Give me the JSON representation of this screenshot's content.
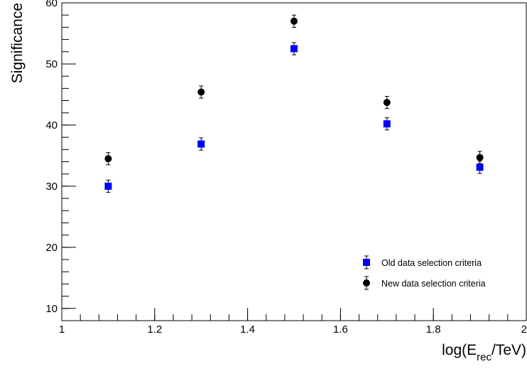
{
  "chart_data": {
    "type": "scatter",
    "ylabel": "Significance",
    "xlabel_parts": {
      "prefix": "log(E",
      "subscript": "rec",
      "suffix": "/TeV)"
    },
    "xlim": [
      1,
      2
    ],
    "ylim": [
      8,
      60
    ],
    "x_ticks": [
      {
        "value": 1,
        "label": "1"
      },
      {
        "value": 1.2,
        "label": "1.2"
      },
      {
        "value": 1.4,
        "label": "1.4"
      },
      {
        "value": 1.6,
        "label": "1.6"
      },
      {
        "value": 1.8,
        "label": "1.8"
      },
      {
        "value": 2,
        "label": "2"
      }
    ],
    "y_ticks": [
      {
        "value": 10,
        "label": "10"
      },
      {
        "value": 20,
        "label": "20"
      },
      {
        "value": 30,
        "label": "30"
      },
      {
        "value": 40,
        "label": "40"
      },
      {
        "value": 50,
        "label": "50"
      },
      {
        "value": 60,
        "label": "60"
      }
    ],
    "x_minor_step": 0.04,
    "y_minor_step": 2,
    "grid": false,
    "legend_position": "bottom-right",
    "series": [
      {
        "name": "Old data selection criteria",
        "marker": "square",
        "color": "#0000ff",
        "x": [
          1.1,
          1.3,
          1.5,
          1.7,
          1.9
        ],
        "y": [
          30.0,
          36.9,
          52.5,
          40.2,
          33.1
        ],
        "yerr": [
          1.0,
          1.0,
          1.0,
          1.0,
          1.0
        ]
      },
      {
        "name": "New data selection criteria",
        "marker": "circle",
        "color": "#000000",
        "x": [
          1.1,
          1.3,
          1.5,
          1.7,
          1.9
        ],
        "y": [
          34.5,
          45.4,
          57.0,
          43.7,
          34.7
        ],
        "yerr": [
          1.0,
          1.0,
          1.0,
          1.0,
          1.0
        ]
      }
    ]
  }
}
